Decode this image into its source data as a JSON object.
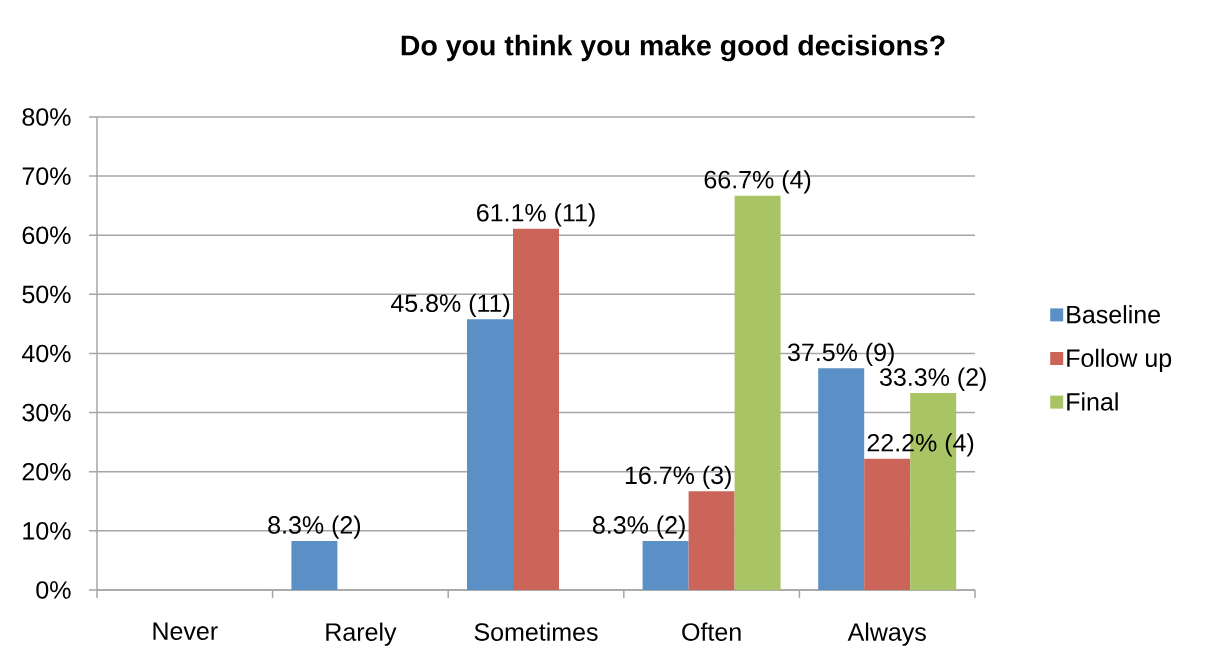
{
  "chart_data": {
    "type": "bar",
    "title": "Do you think you make good decisions?",
    "categories": [
      "Never",
      "Rarely",
      "Sometimes",
      "Often",
      "Always"
    ],
    "series": [
      {
        "name": "Baseline",
        "color": "#5b90c7",
        "values": [
          null,
          8.3,
          45.8,
          8.3,
          37.5
        ],
        "value_labels": [
          null,
          "8.3% (2)",
          "45.8% (11)",
          "8.3% (2)",
          "37.5% (9)"
        ]
      },
      {
        "name": "Follow up",
        "color": "#cb6459",
        "values": [
          null,
          null,
          61.1,
          16.7,
          22.2
        ],
        "value_labels": [
          null,
          null,
          "61.1% (11)",
          "16.7% (3)",
          "22.2% (4)"
        ]
      },
      {
        "name": "Final",
        "color": "#a9c465",
        "values": [
          null,
          null,
          null,
          66.7,
          33.3
        ],
        "value_labels": [
          null,
          null,
          null,
          "66.7% (4)",
          "33.3% (2)"
        ]
      }
    ],
    "ylim": [
      0,
      80
    ],
    "yticks": [
      {
        "value": 0,
        "label": "0%"
      },
      {
        "value": 10,
        "label": "10%"
      },
      {
        "value": 20,
        "label": "20%"
      },
      {
        "value": 30,
        "label": "30%"
      },
      {
        "value": 40,
        "label": "40%"
      },
      {
        "value": 50,
        "label": "50%"
      },
      {
        "value": 60,
        "label": "60%"
      },
      {
        "value": 70,
        "label": "70%"
      },
      {
        "value": 80,
        "label": "80%"
      }
    ],
    "grid": "y",
    "legend": "right"
  }
}
